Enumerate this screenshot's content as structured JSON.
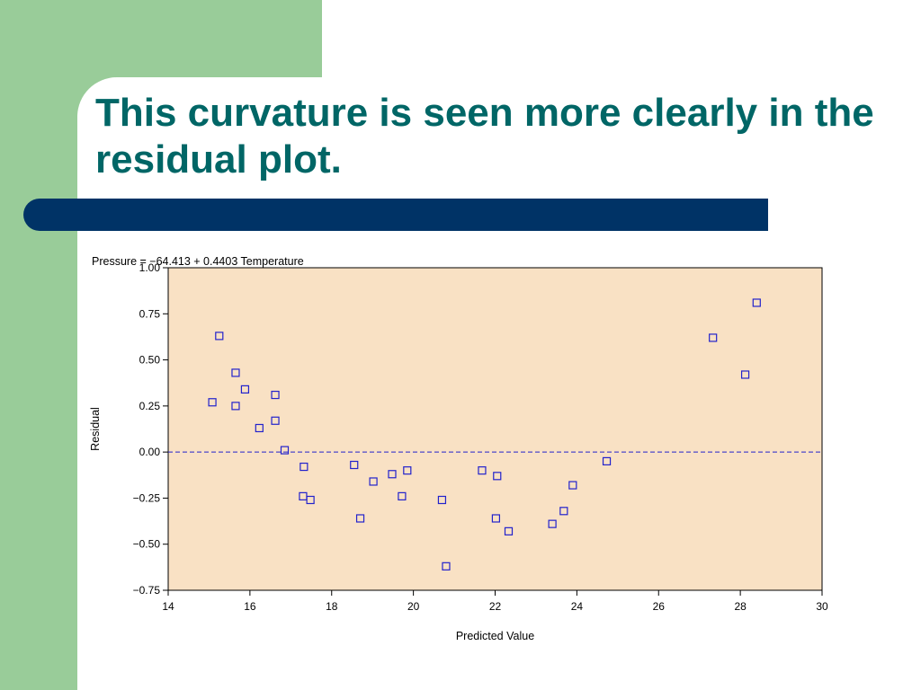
{
  "slide": {
    "title": "This curvature is seen more clearly in the residual plot."
  },
  "colors": {
    "left_block": "#99cc99",
    "title_text": "#006666",
    "title_bar": "#003366",
    "plot_background": "#f9e1c4",
    "marker": "#2222cc",
    "reference_line": "#2222cc"
  },
  "chart_data": {
    "type": "scatter",
    "title": "Pressure =   −64.413  + 0.4403 Temperature",
    "xlabel": "Predicted Value",
    "ylabel": "Residual",
    "xlim": [
      14,
      30
    ],
    "ylim": [
      -0.75,
      1.0
    ],
    "xticks": [
      14,
      16,
      18,
      20,
      22,
      24,
      26,
      28,
      30
    ],
    "yticks": [
      1.0,
      0.75,
      0.5,
      0.25,
      0.0,
      -0.25,
      -0.5,
      -0.75
    ],
    "ytick_labels": [
      "1.00",
      "0.75",
      "0.50",
      "0.25",
      "0.00",
      "−0.25",
      "−0.50",
      "−0.75"
    ],
    "reference_line": {
      "y": 0,
      "style": "dashed"
    },
    "marker": "open-square",
    "grid": false,
    "points": [
      {
        "x": 15.08,
        "y": 0.27
      },
      {
        "x": 15.25,
        "y": 0.63
      },
      {
        "x": 15.65,
        "y": 0.43
      },
      {
        "x": 15.65,
        "y": 0.25
      },
      {
        "x": 15.88,
        "y": 0.34
      },
      {
        "x": 16.23,
        "y": 0.13
      },
      {
        "x": 16.62,
        "y": 0.31
      },
      {
        "x": 16.62,
        "y": 0.17
      },
      {
        "x": 16.85,
        "y": 0.01
      },
      {
        "x": 17.32,
        "y": -0.08
      },
      {
        "x": 17.3,
        "y": -0.24
      },
      {
        "x": 17.48,
        "y": -0.26
      },
      {
        "x": 18.55,
        "y": -0.07
      },
      {
        "x": 18.7,
        "y": -0.36
      },
      {
        "x": 19.02,
        "y": -0.16
      },
      {
        "x": 19.48,
        "y": -0.12
      },
      {
        "x": 19.72,
        "y": -0.24
      },
      {
        "x": 19.85,
        "y": -0.1
      },
      {
        "x": 20.7,
        "y": -0.26
      },
      {
        "x": 20.8,
        "y": -0.62
      },
      {
        "x": 21.68,
        "y": -0.1
      },
      {
        "x": 22.02,
        "y": -0.36
      },
      {
        "x": 22.05,
        "y": -0.13
      },
      {
        "x": 22.33,
        "y": -0.43
      },
      {
        "x": 23.4,
        "y": -0.39
      },
      {
        "x": 23.68,
        "y": -0.32
      },
      {
        "x": 23.9,
        "y": -0.18
      },
      {
        "x": 24.73,
        "y": -0.05
      },
      {
        "x": 27.33,
        "y": 0.62
      },
      {
        "x": 28.12,
        "y": 0.42
      },
      {
        "x": 28.4,
        "y": 0.81
      }
    ]
  }
}
